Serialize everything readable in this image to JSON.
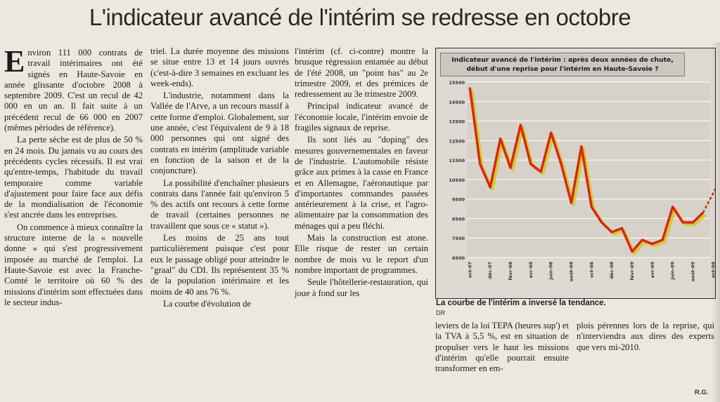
{
  "headline": "L'indicateur avancé de l'intérim se redresse en octobre",
  "columns": {
    "c1": {
      "dropcap": "E",
      "p1": "nviron 111 000 contrats de travail intérimaires ont été signés en Haute-Savoie en année glissante d'octobre 2008 à septembre 2009. C'est un recul de 42 000 en un an. Il fait suite à un précédent recul de 66 000 en 2007 (mêmes périodes de référence).",
      "p2": "La perte sèche est de plus de 50 % en 24 mois. Du jamais vu au cours des précédents cycles récessifs. Il est vrai qu'entre-temps, l'habitude du travail temporaire comme variable d'ajustement pour faire face aux défis de la mondialisation de l'économie s'est ancrée dans les entreprises.",
      "p3": "On commence à mieux connaître la structure interne de la « nouvelle donne » qui s'est progressivement imposée au marché de l'emploi. La Haute-Savoie est avec la Franche-Comté le territoire où 60 % des missions d'intérim sont effectuées dans le secteur indus-"
    },
    "c2": {
      "p1": "triel. La durée moyenne des missions se situe entre 13 et 14 jours ouvrés (c'est-à-dire 3 semaines en excluant les week-ends).",
      "p2": "L'industrie, notamment dans la Vallée de l'Arve, a un recours massif à cette forme d'emploi. Globalement, sur une année, c'est l'équivalent de 9 à 18 000 personnes qui ont signé des contrats en intérim (amplitude variable en fonction de la saison et de la conjoncture).",
      "p3": "La possibilité d'enchaîner plusieurs contrats dans l'année fait qu'environ 5 % des actifs ont recours à cette forme de travail (certaines personnes ne travaillent que sous ce « statut »).",
      "p4": "Les moins de 25 ans tout particulièrement puisque c'est pour eux le passage obligé pour atteindre le \"graal\" du CDI. Ils représentent 35 % de la population intérimaire et les moins de 40 ans 76 %.",
      "p5": "La courbe d'évolution de"
    },
    "c3": {
      "p1": "l'intérim (cf. ci-contre) montre la brusque régression entamée au début de l'été 2008, un \"point bas\" au 2e trimestre 2009, et des prémices de redressement au 3e trimestre 2009.",
      "p2": "Principal indicateur avancé de l'économie locale, l'intérim envoie de fragiles signaux de reprise.",
      "p3": "Ils sont liés au \"doping\" des mesures gouvernementales en faveur de l'industrie. L'automobile résiste grâce aux primes à la casse en France et en Allemagne, l'aéronautique par d'importantes commandes passées antérieurement à la crise, et l'agro-alimentaire par la consommation des ménages qui a peu fléchi.",
      "p4": "Mais la construction est atone. Elle risque de rester un certain nombre de mois vu le report d'un nombre important de programmes.",
      "p5": "Seule l'hôtellerie-restauration, qui joue à fond sur les"
    },
    "c4": {
      "p1": "leviers de la loi TEPA (heures sup') et la TVA à 5,5 %, est en situation de propulser vers le haut les missions d'intérim qu'elle pourrait ensuite transformer en em-"
    },
    "c5": {
      "p1": "plois pérennes lors de la reprise, qui n'interviendra aux dires des experts que vers mi-2010."
    }
  },
  "caption": "La courbe de l'intérim a inversé la tendance.",
  "credit": "DR",
  "signature": "R.G.",
  "chart_data": {
    "type": "line",
    "title": "Indicateur avancé de l'intérim : après deux années de chute, début d'une reprise pour l'intérim en Haute-Savoie ?",
    "xlabel": "",
    "ylabel": "",
    "ylim": [
      6500,
      15500
    ],
    "yticks": [
      6500,
      7500,
      8500,
      9500,
      10500,
      11500,
      12500,
      13500,
      14500,
      15500
    ],
    "ytick_labels": [
      "6500",
      "7500",
      "8500",
      "9500",
      "10500",
      "11500",
      "12500",
      "13500",
      "14500",
      "15500"
    ],
    "x": [
      "oct-07",
      "nov-07",
      "déc-07",
      "janv-08",
      "févr-08",
      "mars-08",
      "avr-08",
      "mai-08",
      "juin-08",
      "juil-08",
      "août-08",
      "sept-08",
      "oct-08",
      "nov-08",
      "déc-08",
      "janv-09",
      "févr-09",
      "mars-09",
      "avr-09",
      "mai-09",
      "juin-09",
      "juil-09",
      "août-09",
      "sept-09"
    ],
    "xtick_labels": [
      "oct-07",
      "déc-07",
      "févr-08",
      "avr-08",
      "juin-08",
      "août-08",
      "oct-08",
      "déc-08",
      "févr-09",
      "avr-09",
      "juin-09",
      "août-09",
      "oct-09"
    ],
    "series": [
      {
        "values": [
          15200,
          11300,
          10100,
          12600,
          11100,
          13300,
          11300,
          10900,
          12900,
          11300,
          9300,
          12200,
          9100,
          8300,
          7800,
          8000,
          6800,
          7400,
          7200,
          7400,
          9100,
          8300,
          8300,
          8800
        ],
        "color": "#d42a10"
      }
    ],
    "projection": {
      "from": 8800,
      "to": 10400,
      "color": "#d42a10",
      "style": "dashed"
    },
    "shadow_color": "#d8c61c",
    "grid": true,
    "grid_color": "#ffffff",
    "plot_background": "#d6d2ca"
  }
}
